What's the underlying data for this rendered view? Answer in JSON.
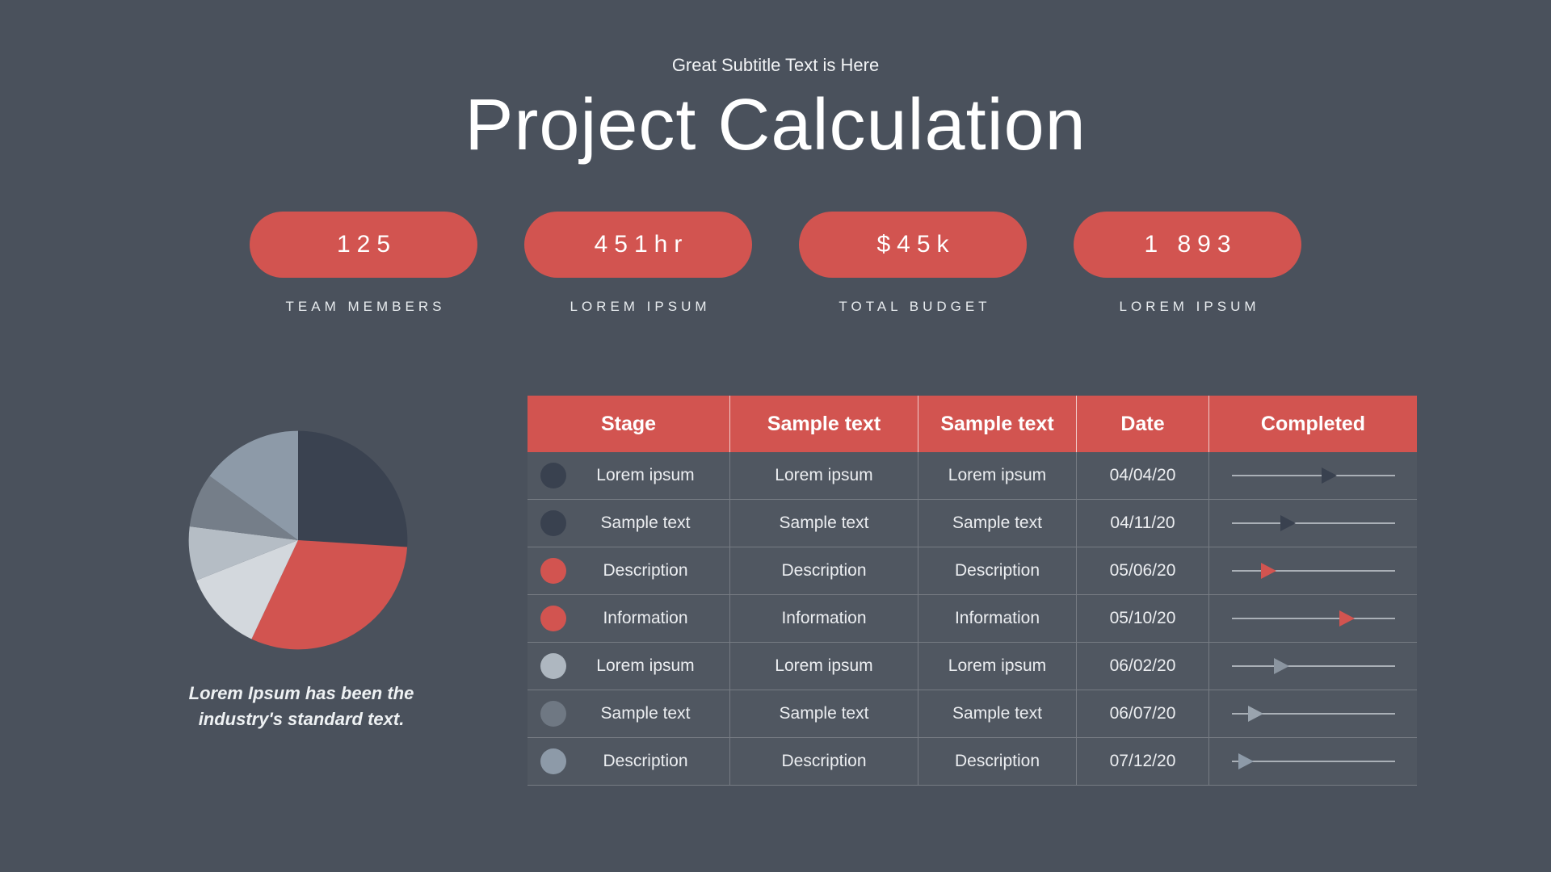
{
  "colors": {
    "background": "#4a515c",
    "accent_red": "#d25450",
    "text_light": "#eceef1",
    "navy": "#39414f"
  },
  "header": {
    "subtitle": "Great Subtitle Text is Here",
    "title": "Project Calculation"
  },
  "stats": [
    {
      "value": "125",
      "label": "TEAM MEMBERS"
    },
    {
      "value": "451hr",
      "label": "LOREM IPSUM"
    },
    {
      "value": "$45k",
      "label": "TOTAL BUDGET"
    },
    {
      "value": "1 893",
      "label": "LOREM IPSUM"
    }
  ],
  "chart_data": {
    "type": "pie",
    "title": "",
    "slices": [
      {
        "label": "navy-segment",
        "value": 26,
        "color": "#3a4250"
      },
      {
        "label": "red-segment",
        "value": 31,
        "color": "#d25450"
      },
      {
        "label": "pale-gray-segment",
        "value": 12,
        "color": "#d3d8dd"
      },
      {
        "label": "light-gray-segment",
        "value": 8,
        "color": "#b5bdc5"
      },
      {
        "label": "dark-gray-segment",
        "value": 8,
        "color": "#757e89"
      },
      {
        "label": "slate-gray-segment",
        "value": 15,
        "color": "#8d9aa8"
      }
    ],
    "caption": "Lorem Ipsum has been the\nindustry's standard text."
  },
  "table": {
    "columns": [
      "Stage",
      "Sample text",
      "Sample text",
      "Date",
      "Completed"
    ],
    "rows": [
      {
        "stage": "Lorem ipsum",
        "col2": "Lorem ipsum",
        "col3": "Lorem ipsum",
        "date": "04/04/20",
        "dot_color": "#39414f",
        "marker": {
          "position_pct": 55,
          "color": "#39414f"
        }
      },
      {
        "stage": "Sample text",
        "col2": "Sample text",
        "col3": "Sample text",
        "date": "04/11/20",
        "dot_color": "#39414f",
        "marker": {
          "position_pct": 30,
          "color": "#39414f"
        }
      },
      {
        "stage": "Description",
        "col2": "Description",
        "col3": "Description",
        "date": "05/06/20",
        "dot_color": "#d25450",
        "marker": {
          "position_pct": 18,
          "color": "#d25450"
        }
      },
      {
        "stage": "Information",
        "col2": "Information",
        "col3": "Information",
        "date": "05/10/20",
        "dot_color": "#d25450",
        "marker": {
          "position_pct": 66,
          "color": "#d25450"
        }
      },
      {
        "stage": "Lorem ipsum",
        "col2": "Lorem ipsum",
        "col3": "Lorem ipsum",
        "date": "06/02/20",
        "dot_color": "#aeb7c0",
        "marker": {
          "position_pct": 26,
          "color": "#8b95a0"
        }
      },
      {
        "stage": "Sample text",
        "col2": "Sample text",
        "col3": "Sample text",
        "date": "06/07/20",
        "dot_color": "#6f7883",
        "marker": {
          "position_pct": 10,
          "color": "#9aa4ae"
        }
      },
      {
        "stage": "Description",
        "col2": "Description",
        "col3": "Description",
        "date": "07/12/20",
        "dot_color": "#8d9aa8",
        "marker": {
          "position_pct": 4,
          "color": "#8d9aa8"
        }
      }
    ]
  }
}
